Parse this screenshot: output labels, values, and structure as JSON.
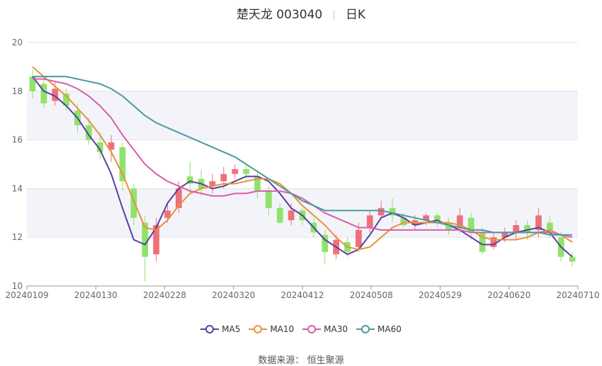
{
  "title": {
    "name": "楚天龙 003040",
    "period": "日K"
  },
  "source_label": "数据来源：",
  "source_name": "恒生聚源",
  "chart_data": {
    "type": "candlestick",
    "ylim": [
      10,
      20
    ],
    "y_ticks": [
      10,
      12,
      14,
      16,
      18,
      20
    ],
    "x_tick_labels": [
      "20240109",
      "20240130",
      "20240228",
      "20240320",
      "20240412",
      "20240508",
      "20240529",
      "20240620",
      "20240710"
    ],
    "up_color": "#f0707a",
    "down_color": "#8fe36a",
    "ma_series": [
      {
        "name": "MA5",
        "color": "#5b3fa0",
        "values": [
          18.6,
          18.0,
          17.8,
          17.4,
          16.9,
          16.2,
          15.6,
          14.6,
          13.2,
          11.9,
          11.7,
          12.4,
          13.4,
          14.0,
          14.3,
          14.2,
          14.0,
          14.1,
          14.3,
          14.5,
          14.5,
          14.3,
          13.8,
          13.2,
          12.9,
          12.4,
          11.9,
          11.6,
          11.3,
          11.5,
          12.1,
          12.8,
          13.0,
          12.8,
          12.5,
          12.6,
          12.7,
          12.5,
          12.3,
          12.0,
          11.7,
          11.7,
          12.0,
          12.2,
          12.3,
          12.4,
          12.2,
          11.6,
          11.2
        ]
      },
      {
        "name": "MA10",
        "color": "#e8913a",
        "values": [
          19.0,
          18.6,
          18.2,
          17.8,
          17.3,
          16.8,
          16.2,
          15.5,
          14.6,
          13.5,
          12.4,
          12.3,
          12.7,
          13.3,
          13.8,
          14.0,
          14.1,
          14.2,
          14.2,
          14.3,
          14.4,
          14.4,
          14.2,
          13.8,
          13.3,
          12.9,
          12.5,
          12.0,
          11.6,
          11.5,
          11.6,
          12.0,
          12.4,
          12.6,
          12.6,
          12.6,
          12.6,
          12.6,
          12.5,
          12.3,
          12.0,
          11.9,
          11.9,
          11.9,
          12.0,
          12.2,
          12.3,
          12.1,
          11.8
        ]
      },
      {
        "name": "MA30",
        "color": "#d95fa8",
        "values": [
          18.5,
          18.5,
          18.4,
          18.3,
          18.1,
          17.8,
          17.4,
          16.9,
          16.2,
          15.6,
          15.0,
          14.6,
          14.3,
          14.1,
          13.9,
          13.8,
          13.7,
          13.7,
          13.8,
          13.8,
          13.9,
          13.9,
          13.9,
          13.8,
          13.6,
          13.3,
          13.0,
          12.8,
          12.6,
          12.4,
          12.4,
          12.3,
          12.3,
          12.3,
          12.3,
          12.3,
          12.3,
          12.3,
          12.3,
          12.2,
          12.2,
          12.2,
          12.2,
          12.2,
          12.2,
          12.2,
          12.2,
          12.1,
          12.0
        ]
      },
      {
        "name": "MA60",
        "color": "#4a9c9c",
        "values": [
          18.6,
          18.6,
          18.6,
          18.6,
          18.5,
          18.4,
          18.3,
          18.1,
          17.8,
          17.4,
          17.0,
          16.7,
          16.5,
          16.3,
          16.1,
          15.9,
          15.7,
          15.5,
          15.3,
          15.0,
          14.7,
          14.4,
          14.1,
          13.8,
          13.5,
          13.3,
          13.1,
          13.1,
          13.1,
          13.1,
          13.1,
          13.1,
          13.0,
          12.9,
          12.8,
          12.7,
          12.6,
          12.5,
          12.4,
          12.3,
          12.3,
          12.2,
          12.2,
          12.2,
          12.2,
          12.2,
          12.1,
          12.1,
          12.1
        ]
      }
    ],
    "candles": [
      [
        18.6,
        18.0,
        18.9,
        17.7
      ],
      [
        18.3,
        17.5,
        18.6,
        17.3
      ],
      [
        17.6,
        18.1,
        18.4,
        17.4
      ],
      [
        17.9,
        17.4,
        18.1,
        17.2
      ],
      [
        17.2,
        16.6,
        17.5,
        16.3
      ],
      [
        16.6,
        16.0,
        16.9,
        15.8
      ],
      [
        15.9,
        15.5,
        16.3,
        15.2
      ],
      [
        15.6,
        15.9,
        16.2,
        15.1
      ],
      [
        15.7,
        14.3,
        15.9,
        13.9
      ],
      [
        14.0,
        12.8,
        14.2,
        12.5
      ],
      [
        12.6,
        11.2,
        12.9,
        10.2
      ],
      [
        11.3,
        12.5,
        12.8,
        11.0
      ],
      [
        12.8,
        13.1,
        13.4,
        12.6
      ],
      [
        13.2,
        14.0,
        14.3,
        13.0
      ],
      [
        14.5,
        14.2,
        15.1,
        13.8
      ],
      [
        14.4,
        14.0,
        14.8,
        13.7
      ],
      [
        14.1,
        14.3,
        14.6,
        13.8
      ],
      [
        14.3,
        14.6,
        14.9,
        14.0
      ],
      [
        14.6,
        14.8,
        15.0,
        14.4
      ],
      [
        14.8,
        14.6,
        15.0,
        14.3
      ],
      [
        14.5,
        13.9,
        14.7,
        13.6
      ],
      [
        13.9,
        13.2,
        14.1,
        12.9
      ],
      [
        13.2,
        12.6,
        13.4,
        12.5
      ],
      [
        12.7,
        13.1,
        13.4,
        12.5
      ],
      [
        13.1,
        12.7,
        13.2,
        12.5
      ],
      [
        12.6,
        12.2,
        12.8,
        12.0
      ],
      [
        12.1,
        11.4,
        12.3,
        10.9
      ],
      [
        11.3,
        11.9,
        12.1,
        11.1
      ],
      [
        11.8,
        11.4,
        12.0,
        11.2
      ],
      [
        11.6,
        12.3,
        12.6,
        11.4
      ],
      [
        12.4,
        12.9,
        13.1,
        12.2
      ],
      [
        12.9,
        13.2,
        13.5,
        12.8
      ],
      [
        13.2,
        12.9,
        13.6,
        12.6
      ],
      [
        12.8,
        12.5,
        13.0,
        12.4
      ],
      [
        12.5,
        12.7,
        12.9,
        12.3
      ],
      [
        12.7,
        12.9,
        13.0,
        12.5
      ],
      [
        12.9,
        12.7,
        13.0,
        12.4
      ],
      [
        12.6,
        12.3,
        12.8,
        12.1
      ],
      [
        12.4,
        12.9,
        13.2,
        12.2
      ],
      [
        12.8,
        12.2,
        13.0,
        11.9
      ],
      [
        12.2,
        11.4,
        12.4,
        11.3
      ],
      [
        11.6,
        12.0,
        12.2,
        11.5
      ],
      [
        12.0,
        12.2,
        12.4,
        11.8
      ],
      [
        12.2,
        12.5,
        12.7,
        11.9
      ],
      [
        12.5,
        12.2,
        12.7,
        11.9
      ],
      [
        12.3,
        12.9,
        13.2,
        12.0
      ],
      [
        12.6,
        12.2,
        12.9,
        12.0
      ],
      [
        12.0,
        11.2,
        12.2,
        11.0
      ],
      [
        11.2,
        11.0,
        11.4,
        10.8
      ]
    ]
  }
}
